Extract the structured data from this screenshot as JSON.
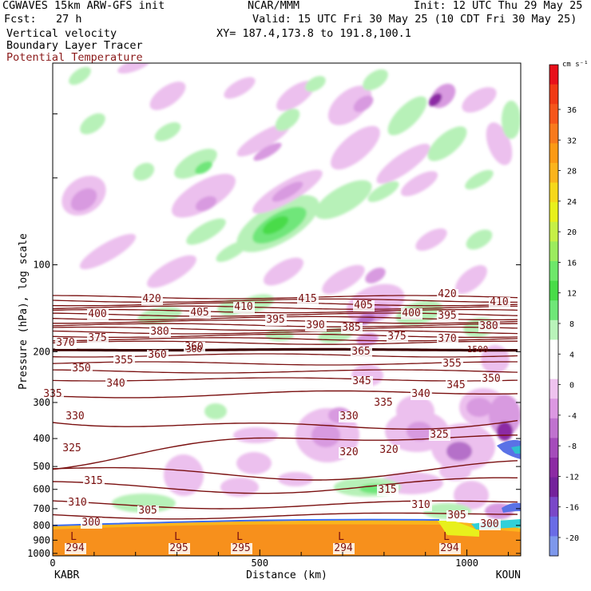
{
  "header": {
    "model": "CGWAVES 15km ARW-GFS init",
    "forecast": "Fcst:   27 h",
    "org": "NCAR/MMM",
    "init": "Init: 12 UTC Thu 29 May 25",
    "valid": "Valid: 15 UTC Fri 30 May 25 (10 CDT Fri 30 May 25)",
    "xy": "XY= 187.4,173.8 to 191.8,100.1",
    "field1": "Vertical velocity",
    "field2": "Boundary Layer Tracer",
    "field3": "Potential Temperature",
    "field3_color": "#8b1a1a"
  },
  "chart_data": {
    "type": "contour",
    "xlabel": "Distance (km)",
    "ylabel": "Pressure (hPa), log scale",
    "x_range": [
      0,
      1130
    ],
    "y_range": [
      1020,
      20
    ],
    "x_ticks": [
      "0",
      "500",
      "1000"
    ],
    "y_ticks": [
      "100",
      "200",
      "300",
      "400",
      "500",
      "600",
      "700",
      "800",
      "900",
      "1000"
    ],
    "endpoints": {
      "left": "KABR",
      "right": "KOUN"
    },
    "colorbar": {
      "units": "cm s⁻¹",
      "labels": [
        "36",
        "32",
        "28",
        "24",
        "20",
        "16",
        "12",
        "8",
        "4",
        "0",
        "-4",
        "-8",
        "-12",
        "-16",
        "-20"
      ],
      "colors": [
        "#e8101a",
        "#f03a14",
        "#f5561a",
        "#f87a1c",
        "#fb9a14",
        "#fbb41c",
        "#f6d81a",
        "#e8f01c",
        "#c6f046",
        "#9cec5e",
        "#6ee86a",
        "#48dc48",
        "#6fe778",
        "#b9f3ba",
        "#ffffff",
        "#ffffff",
        "#efc3ef",
        "#dc98e2",
        "#c073cf",
        "#a54cbb",
        "#8c2aa4",
        "#74229c",
        "#7a48c8",
        "#6a6ce6",
        "#7e98ec"
      ]
    },
    "theta_contours": [
      294,
      295,
      300,
      305,
      310,
      315,
      320,
      325,
      330,
      335,
      340,
      345,
      350,
      355,
      360,
      365,
      370,
      375,
      380,
      385,
      390,
      395,
      400,
      405,
      410,
      415,
      420
    ],
    "tropopause_labels": [
      "360",
      "1500"
    ],
    "pbl_marker": "L"
  }
}
